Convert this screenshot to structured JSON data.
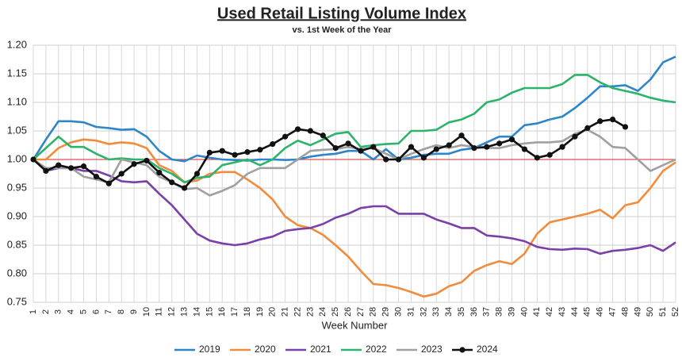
{
  "chart_data": {
    "type": "line",
    "title": "Used Retail Listing Volume Index",
    "subtitle": "vs. 1st Week of the Year",
    "xlabel": "Week Number",
    "categories": [
      "1",
      "2",
      "3",
      "4",
      "5",
      "6",
      "7",
      "8",
      "9",
      "10",
      "11",
      "12",
      "13",
      "14",
      "15",
      "16",
      "17",
      "18",
      "19",
      "20",
      "21",
      "22",
      "23",
      "24",
      "25",
      "26",
      "27",
      "28",
      "29",
      "30",
      "31",
      "32",
      "33",
      "34",
      "35",
      "36",
      "37",
      "38",
      "39",
      "40",
      "41",
      "42",
      "43",
      "44",
      "45",
      "46",
      "47",
      "48",
      "49",
      "50",
      "51",
      "52"
    ],
    "ylim": [
      0.75,
      1.2
    ],
    "yticks": [
      {
        "value": 0.75,
        "label": "0.75"
      },
      {
        "value": 0.8,
        "label": "0.80"
      },
      {
        "value": 0.85,
        "label": "0.85"
      },
      {
        "value": 0.9,
        "label": "0.90"
      },
      {
        "value": 0.95,
        "label": "0.95"
      },
      {
        "value": 1.0,
        "label": "1.00"
      },
      {
        "value": 1.05,
        "label": "1.05"
      },
      {
        "value": 1.1,
        "label": "1.10"
      },
      {
        "value": 1.15,
        "label": "1.15"
      },
      {
        "value": 1.2,
        "label": "1.20"
      }
    ],
    "grid": true,
    "legend": "bottom",
    "reference_line": {
      "value": 1.0,
      "color": "#e05050"
    },
    "series": [
      {
        "name": "2019",
        "color": "#2e86c8",
        "values": [
          1.0,
          1.035,
          1.067,
          1.067,
          1.065,
          1.057,
          1.055,
          1.052,
          1.053,
          1.04,
          1.015,
          1.0,
          0.997,
          1.007,
          1.003,
          1.0,
          0.999,
          0.998,
          1.0,
          1.0,
          0.999,
          1.0,
          1.005,
          1.008,
          1.01,
          1.015,
          1.015,
          1.0,
          1.018,
          1.0,
          1.003,
          1.008,
          1.01,
          1.01,
          1.017,
          1.02,
          1.03,
          1.04,
          1.04,
          1.06,
          1.063,
          1.07,
          1.075,
          1.09,
          1.108,
          1.128,
          1.128,
          1.13,
          1.12,
          1.14,
          1.17,
          1.18
        ]
      },
      {
        "name": "2020",
        "color": "#f08c3c",
        "values": [
          1.0,
          1.0,
          1.02,
          1.03,
          1.035,
          1.033,
          1.027,
          1.03,
          1.028,
          1.02,
          0.99,
          0.98,
          0.96,
          0.963,
          0.975,
          0.978,
          0.978,
          0.965,
          0.95,
          0.93,
          0.9,
          0.885,
          0.88,
          0.868,
          0.85,
          0.83,
          0.805,
          0.782,
          0.78,
          0.775,
          0.768,
          0.76,
          0.765,
          0.778,
          0.785,
          0.805,
          0.815,
          0.822,
          0.817,
          0.835,
          0.87,
          0.89,
          0.895,
          0.9,
          0.905,
          0.912,
          0.897,
          0.92,
          0.925,
          0.95,
          0.98,
          0.995
        ]
      },
      {
        "name": "2021",
        "color": "#7b3fa8",
        "values": [
          1.0,
          0.98,
          0.985,
          0.985,
          0.98,
          0.98,
          0.972,
          0.962,
          0.96,
          0.962,
          0.94,
          0.92,
          0.895,
          0.87,
          0.858,
          0.853,
          0.85,
          0.853,
          0.86,
          0.865,
          0.875,
          0.878,
          0.88,
          0.887,
          0.898,
          0.905,
          0.915,
          0.918,
          0.918,
          0.905,
          0.905,
          0.905,
          0.895,
          0.888,
          0.88,
          0.88,
          0.867,
          0.865,
          0.862,
          0.857,
          0.847,
          0.843,
          0.842,
          0.844,
          0.843,
          0.835,
          0.84,
          0.842,
          0.845,
          0.85,
          0.84,
          0.855
        ]
      },
      {
        "name": "2022",
        "color": "#2db36a",
        "values": [
          1.0,
          1.02,
          1.04,
          1.022,
          1.022,
          1.01,
          1.0,
          1.002,
          1.0,
          1.0,
          0.985,
          0.975,
          0.96,
          0.968,
          0.97,
          0.99,
          0.995,
          1.0,
          0.99,
          1.0,
          1.02,
          1.033,
          1.025,
          1.035,
          1.045,
          1.048,
          1.022,
          1.025,
          1.027,
          1.028,
          1.05,
          1.05,
          1.052,
          1.065,
          1.07,
          1.08,
          1.1,
          1.105,
          1.117,
          1.125,
          1.125,
          1.125,
          1.132,
          1.148,
          1.148,
          1.135,
          1.125,
          1.12,
          1.115,
          1.108,
          1.103,
          1.1
        ]
      },
      {
        "name": "2023",
        "color": "#a0a0a0",
        "values": [
          1.0,
          0.985,
          0.985,
          0.985,
          0.97,
          0.965,
          0.96,
          1.0,
          0.995,
          0.99,
          0.97,
          0.96,
          0.948,
          0.95,
          0.937,
          0.945,
          0.955,
          0.975,
          0.985,
          0.985,
          0.985,
          1.0,
          1.015,
          1.017,
          1.018,
          1.022,
          1.018,
          1.02,
          1.01,
          1.0,
          1.01,
          1.018,
          1.025,
          1.02,
          1.025,
          1.022,
          1.02,
          1.02,
          1.025,
          1.028,
          1.03,
          1.03,
          1.032,
          1.045,
          1.052,
          1.04,
          1.022,
          1.02,
          1.0,
          0.98,
          0.99,
          1.0
        ]
      },
      {
        "name": "2024",
        "color": "#111111",
        "markers": true,
        "values": [
          1.0,
          0.98,
          0.99,
          0.985,
          0.988,
          0.97,
          0.958,
          0.975,
          0.992,
          0.998,
          0.977,
          0.96,
          0.95,
          0.975,
          1.012,
          1.015,
          1.008,
          1.013,
          1.017,
          1.027,
          1.04,
          1.053,
          1.05,
          1.042,
          1.02,
          1.028,
          1.015,
          1.022,
          1.0,
          1.0,
          1.022,
          1.003,
          1.018,
          1.025,
          1.042,
          1.02,
          1.022,
          1.028,
          1.035,
          1.018,
          1.003,
          1.008,
          1.022,
          1.04,
          1.055,
          1.067,
          1.07,
          1.057,
          null,
          null,
          null,
          null
        ]
      }
    ]
  }
}
